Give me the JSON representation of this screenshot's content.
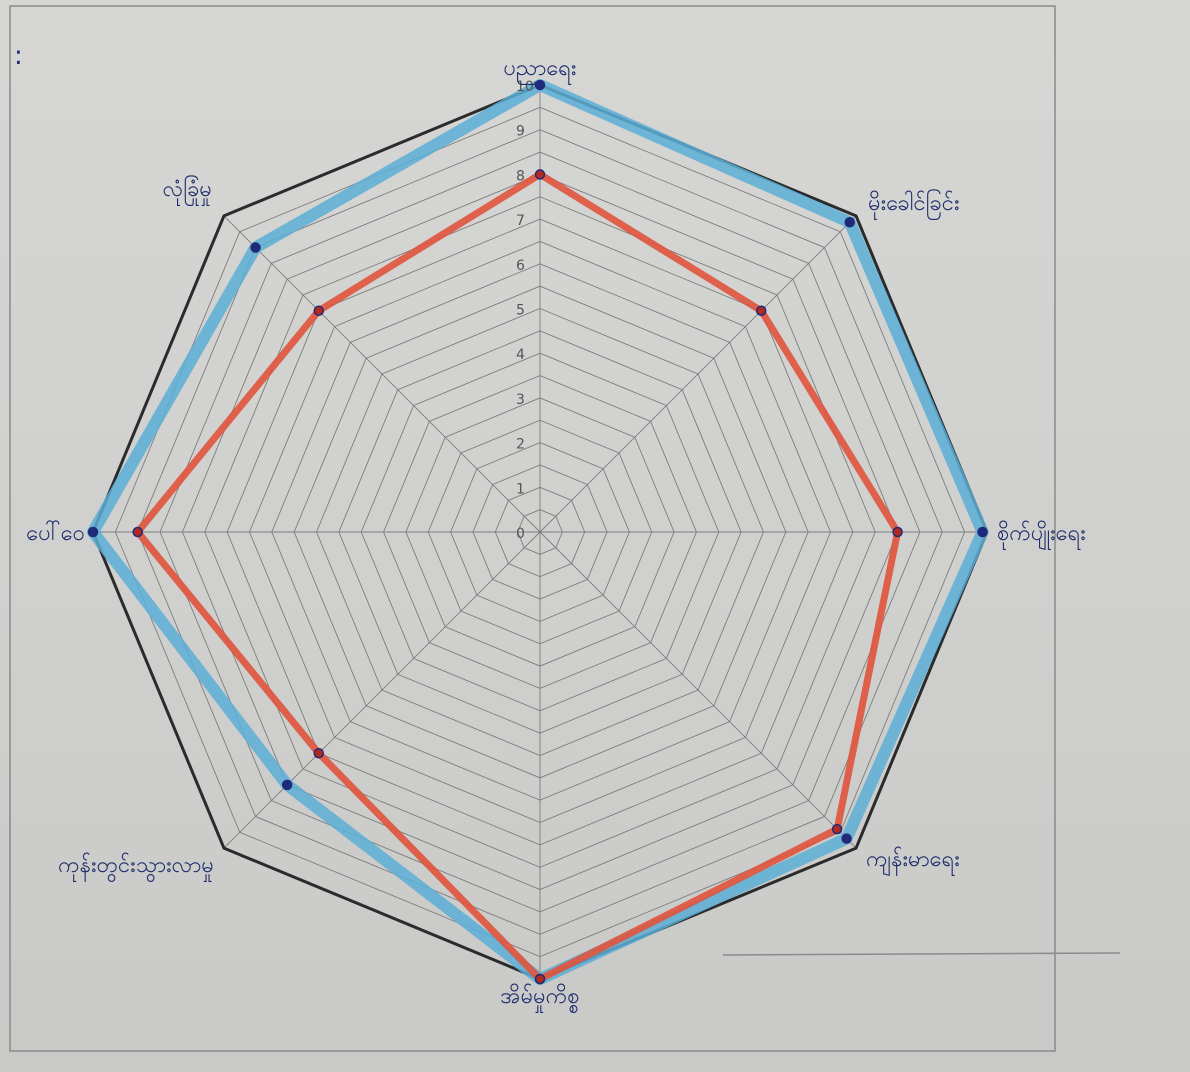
{
  "chart_data": {
    "type": "radar",
    "axes": [
      "ပညာရေး",
      "မိုးခေါင်ခြင်း",
      "စိုက်ပျိုးရေး",
      "ကျန်းမာရေး",
      "အိမ်မှုကိစ္စ",
      "ကုန်းတွင်းသွားလာမှု",
      "ပေါ်ဝေ",
      "လုံခြုံမှု"
    ],
    "ticks": [
      "0",
      "1",
      "2",
      "3",
      "4",
      "5",
      "6",
      "7",
      "8",
      "9",
      "10"
    ],
    "rmin": 0,
    "rmax": 10,
    "grid": true,
    "series": [
      {
        "values": [
          10,
          10,
          10,
          10,
          10,
          10,
          10,
          10
        ],
        "color": "#2b2b2b"
      },
      {
        "values": [
          10,
          9.8,
          9.9,
          9.7,
          10,
          8,
          10,
          9
        ],
        "color": "#5aaed6"
      },
      {
        "values": [
          8,
          7,
          8,
          9.4,
          10,
          7,
          9,
          7
        ],
        "color": "#e0533c"
      }
    ],
    "marker_color": "#1f2a7a",
    "outer_frame_color": "#3a3a3a"
  },
  "page_mark": ":"
}
